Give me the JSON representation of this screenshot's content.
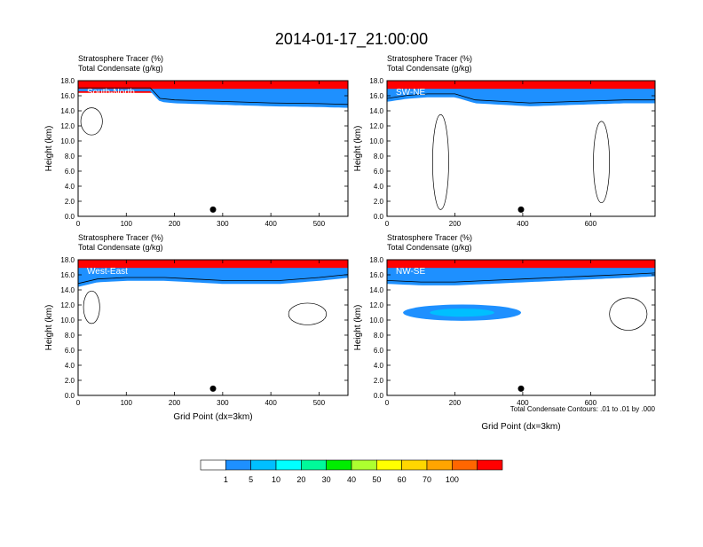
{
  "title": "2014-01-17_21:00:00",
  "contour_note": "Total Condensate Contours: .01 to .01 by .000",
  "colorbar": {
    "levels": [
      "1",
      "5",
      "10",
      "20",
      "30",
      "40",
      "50",
      "60",
      "70",
      "100"
    ],
    "colors": [
      "#ffffff",
      "#1e90ff",
      "#00bfff",
      "#00ffff",
      "#00fa9a",
      "#00ee00",
      "#adff2f",
      "#ffff00",
      "#ffd700",
      "#ffa500",
      "#ff6600",
      "#ff0000"
    ]
  },
  "chart_data": [
    {
      "type": "heatmap",
      "panel": "South-North",
      "title_lines": [
        "Stratosphere Tracer   (%)",
        "Total Condensate   (g/kg)"
      ],
      "ylabel": "Height (km)",
      "xlabel": "",
      "ylim": [
        0,
        18
      ],
      "yticks": [
        "0.0",
        "2.0",
        "4.0",
        "6.0",
        "8.0",
        "10.0",
        "12.0",
        "14.0",
        "16.0",
        "18.0"
      ],
      "xlim": [
        0,
        560
      ],
      "xticks": [
        "0",
        "100",
        "200",
        "300",
        "400",
        "500"
      ],
      "xtick_values": [
        0,
        100,
        200,
        300,
        400,
        500
      ],
      "marker_x": 280,
      "tropopause_km": [
        16.6,
        16.6,
        15.2,
        15.0,
        14.9,
        14.8,
        14.6,
        14.5,
        14.4
      ],
      "tropopause_x": [
        0,
        150,
        170,
        200,
        250,
        300,
        400,
        500,
        560
      ]
    },
    {
      "type": "heatmap",
      "panel": "SW-NE",
      "title_lines": [
        "Stratosphere Tracer   (%)",
        "Total Condensate   (g/kg)"
      ],
      "ylabel": "Height (km)",
      "xlabel": "",
      "ylim": [
        0,
        18
      ],
      "yticks": [
        "0.0",
        "2.0",
        "4.0",
        "6.0",
        "8.0",
        "10.0",
        "12.0",
        "14.0",
        "16.0",
        "18.0"
      ],
      "xlim": [
        0,
        790
      ],
      "xticks": [
        "0",
        "200",
        "400",
        "600"
      ],
      "xtick_values": [
        0,
        200,
        400,
        600
      ],
      "marker_x": 395,
      "tropopause_km": [
        15.2,
        15.6,
        15.8,
        15.8,
        15.0,
        14.8,
        14.6,
        14.8,
        15.0,
        15.0
      ],
      "tropopause_x": [
        0,
        60,
        120,
        200,
        260,
        340,
        420,
        560,
        700,
        790
      ]
    },
    {
      "type": "heatmap",
      "panel": "West-East",
      "title_lines": [
        "Stratosphere Tracer   (%)",
        "Total Condensate   (g/kg)"
      ],
      "ylabel": "Height (km)",
      "xlabel": "Grid Point (dx=3km)",
      "ylim": [
        0,
        18
      ],
      "yticks": [
        "0.0",
        "2.0",
        "4.0",
        "6.0",
        "8.0",
        "10.0",
        "12.0",
        "14.0",
        "16.0",
        "18.0"
      ],
      "xlim": [
        0,
        560
      ],
      "xticks": [
        "0",
        "100",
        "200",
        "300",
        "400",
        "500"
      ],
      "xtick_values": [
        0,
        100,
        200,
        300,
        400,
        500
      ],
      "marker_x": 280,
      "tropopause_km": [
        14.4,
        15.0,
        15.2,
        15.2,
        15.0,
        14.8,
        14.8,
        14.8,
        15.2,
        15.6
      ],
      "tropopause_x": [
        0,
        40,
        100,
        180,
        240,
        300,
        360,
        420,
        500,
        560
      ]
    },
    {
      "type": "heatmap",
      "panel": "NW-SE",
      "title_lines": [
        "Stratosphere Tracer   (%)",
        "Total Condensate   (g/kg)"
      ],
      "ylabel": "Height (km)",
      "xlabel": "Grid Point (dx=3km)",
      "ylim": [
        0,
        18
      ],
      "yticks": [
        "0.0",
        "2.0",
        "4.0",
        "6.0",
        "8.0",
        "10.0",
        "12.0",
        "14.0",
        "16.0",
        "18.0"
      ],
      "xlim": [
        0,
        790
      ],
      "xticks": [
        "0",
        "200",
        "400",
        "600"
      ],
      "xtick_values": [
        0,
        200,
        400,
        600
      ],
      "marker_x": 395,
      "tropopause_km": [
        14.8,
        14.6,
        14.6,
        14.8,
        15.0,
        15.2,
        15.4,
        15.6,
        15.8
      ],
      "tropopause_x": [
        0,
        100,
        200,
        300,
        400,
        500,
        600,
        700,
        790
      ]
    }
  ]
}
